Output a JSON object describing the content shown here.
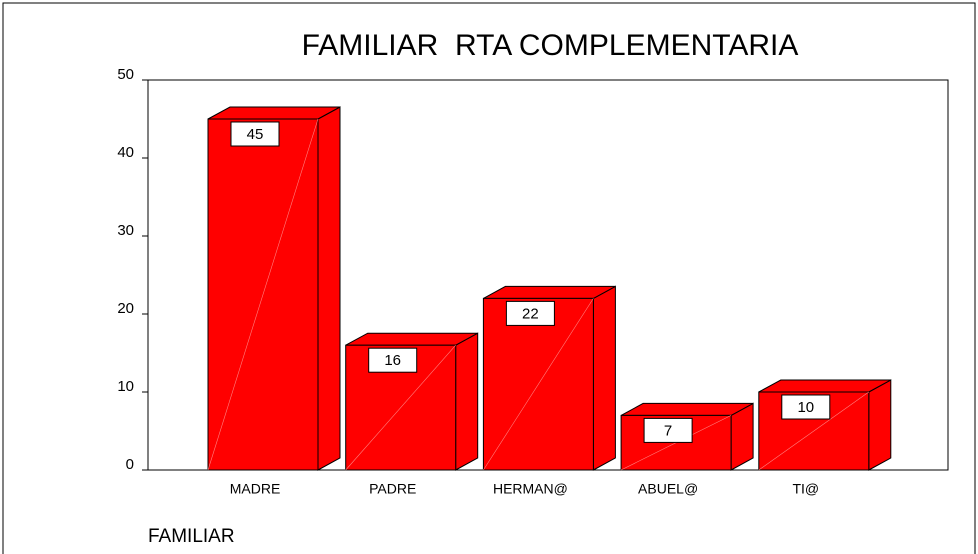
{
  "chart_data": {
    "type": "bar3d",
    "title": "FAMILIAR  RTA COMPLEMENTARIA",
    "x_label": "FAMILIAR",
    "categories": [
      "MADRE",
      "PADRE",
      "HERMAN@",
      "ABUEL@",
      "TI@"
    ],
    "values": [
      45,
      16,
      22,
      7,
      10
    ],
    "color": "#ff0000",
    "ylim": [
      0,
      50
    ],
    "yticks": [
      0,
      10,
      20,
      30,
      40,
      50
    ]
  }
}
